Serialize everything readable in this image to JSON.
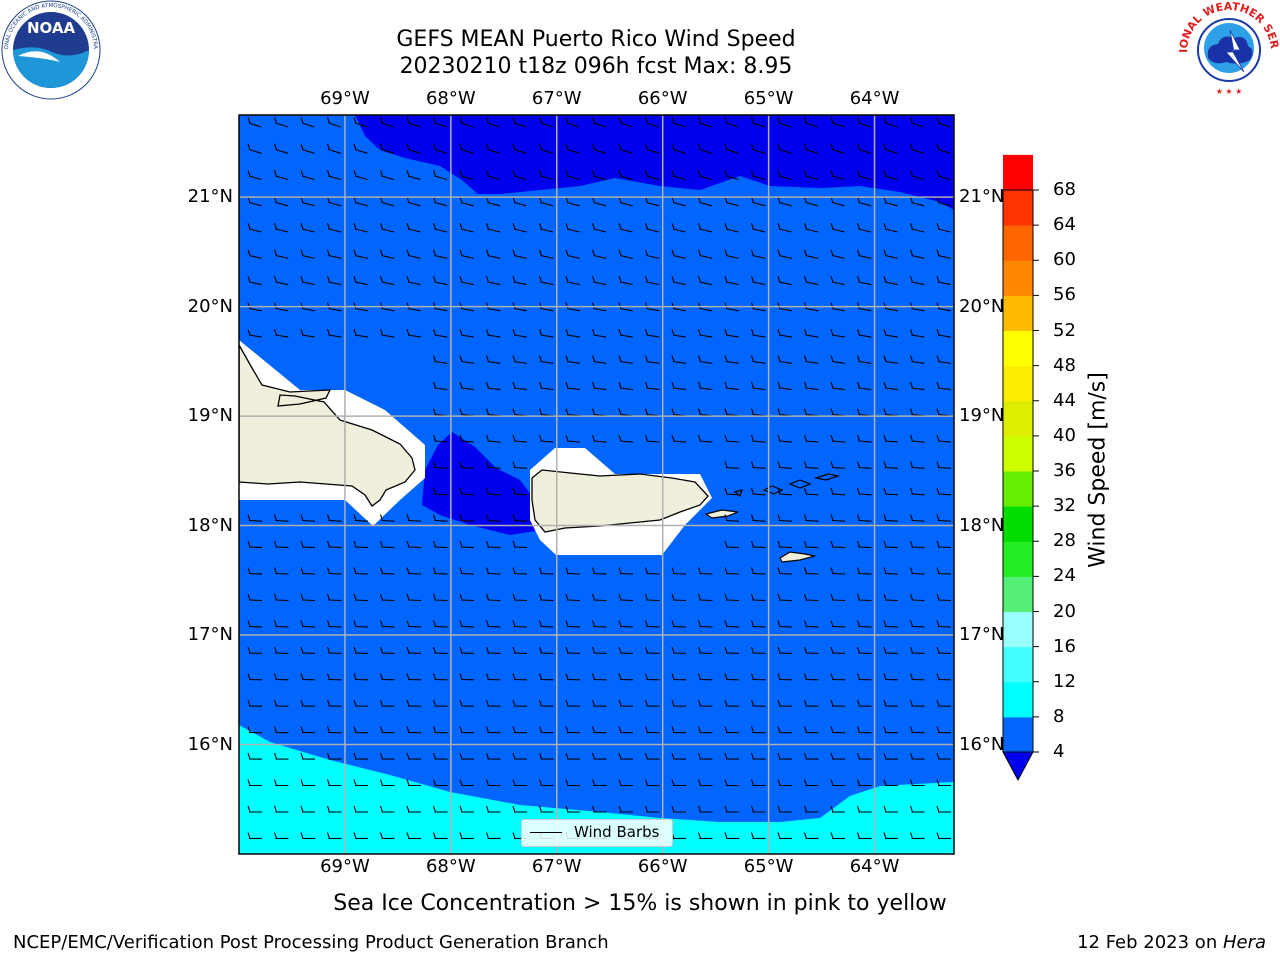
{
  "title": {
    "line1": "GEFS MEAN Puerto Rico Wind Speed",
    "line2": "20230210 t18z 096h fcst   Max: 8.95"
  },
  "map": {
    "lon_ticks": [
      "69°W",
      "68°W",
      "67°W",
      "66°W",
      "65°W",
      "64°W"
    ],
    "lat_ticks": [
      "21°N",
      "20°N",
      "19°N",
      "18°N",
      "17°N",
      "16°N"
    ],
    "extent": {
      "lon_min": -70.0,
      "lon_max": -63.25,
      "lat_min": 15.0,
      "lat_max": 21.75
    },
    "land_color": "#efefdc",
    "grid_color": "#b0b0b0"
  },
  "colorbar": {
    "label": "Wind Speed [m/s]",
    "ticks": [
      "68",
      "64",
      "60",
      "56",
      "52",
      "48",
      "44",
      "40",
      "36",
      "32",
      "28",
      "24",
      "20",
      "16",
      "12",
      "8",
      "4"
    ],
    "levels": [
      4,
      8,
      12,
      16,
      20,
      24,
      28,
      32,
      36,
      40,
      44,
      48,
      52,
      56,
      60,
      64,
      68
    ],
    "colors": [
      "#0066ff",
      "#00ffff",
      "#44ffff",
      "#99ffff",
      "#55ee77",
      "#22ee22",
      "#00dd00",
      "#66ee00",
      "#ccff00",
      "#ddee00",
      "#ffee00",
      "#ffff00",
      "#ffbb00",
      "#ff8800",
      "#ff6600",
      "#ff3300",
      "#ff0000"
    ],
    "under_color": "#0000ee"
  },
  "legend": {
    "label": "Wind Barbs"
  },
  "caption": "Sea Ice Concentration > 15% is shown in pink to yellow",
  "footer": {
    "left": "NCEP/EMC/Verification Post Processing Product Generation Branch",
    "date": "12 Feb 2023 on ",
    "machine": "Hera"
  },
  "logos": {
    "left": {
      "name": "noaa-logo",
      "text": "NOAA"
    },
    "right": {
      "name": "nws-logo",
      "text": "NATIONAL WEATHER SERVICE"
    }
  }
}
